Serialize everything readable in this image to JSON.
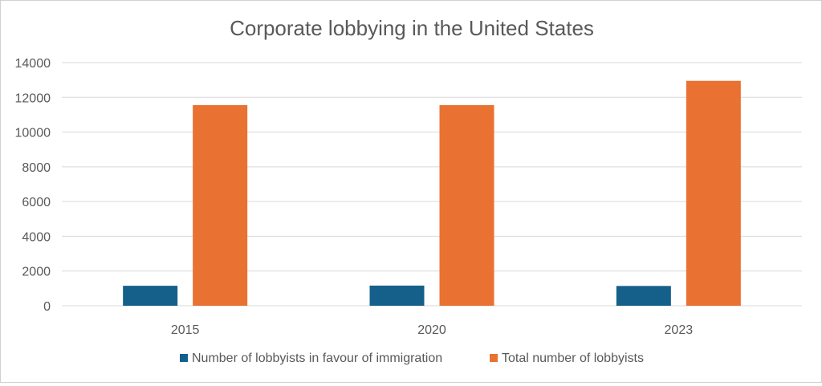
{
  "chart_data": {
    "type": "bar",
    "title": "Corporate lobbying in the United States",
    "xlabel": "",
    "ylabel": "",
    "categories": [
      "2015",
      "2020",
      "2023"
    ],
    "series": [
      {
        "name": "Number of lobbyists in favour of immigration",
        "values": [
          1150,
          1160,
          1140
        ],
        "color": "#15608a"
      },
      {
        "name": "Total number of lobbyists",
        "values": [
          11550,
          11550,
          12950
        ],
        "color": "#e97132"
      }
    ],
    "ylim": [
      0,
      14000
    ],
    "yticks": [
      "0",
      "2000",
      "4000",
      "6000",
      "8000",
      "10000",
      "12000",
      "14000"
    ],
    "grid": true,
    "legend_position": "bottom"
  }
}
